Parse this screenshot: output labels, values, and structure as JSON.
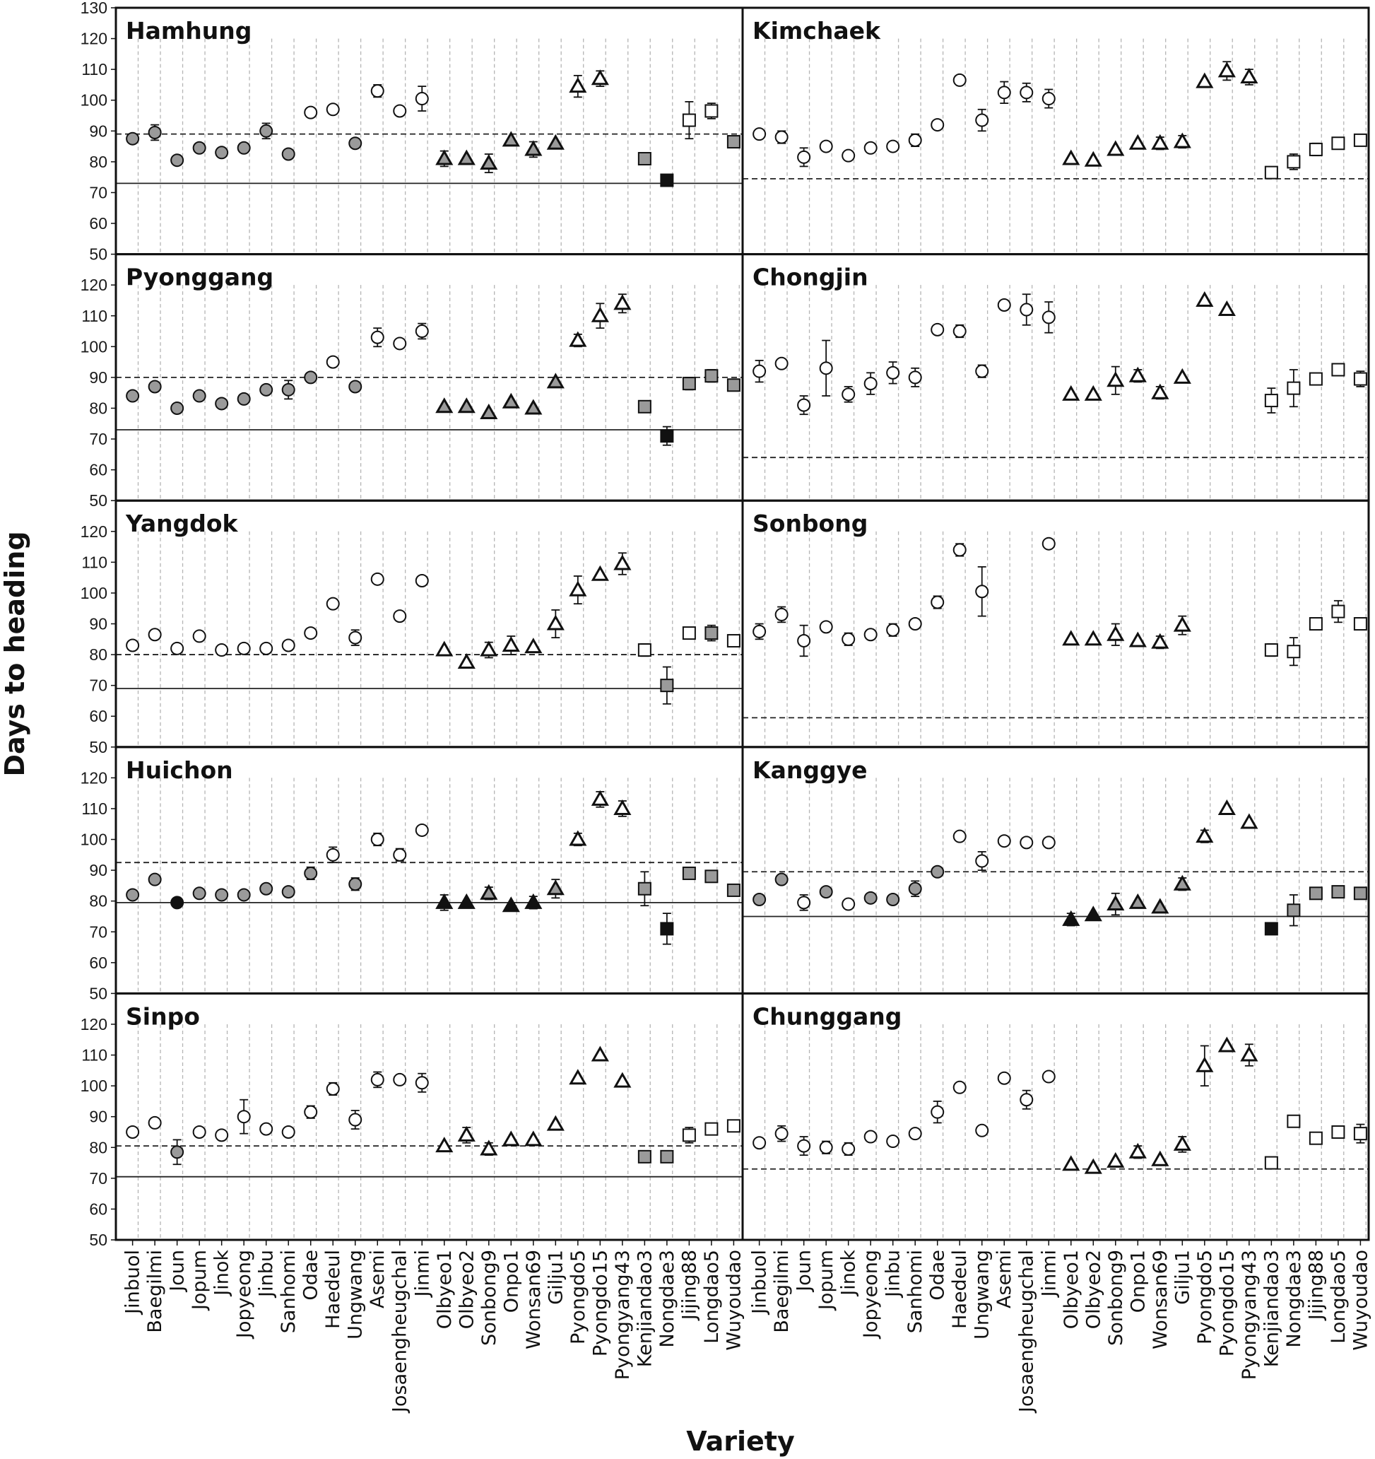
{
  "chart_data": {
    "type": "scatter",
    "ylabel": "Days to heading",
    "xlabel": "Variety",
    "ylim": [
      50,
      130
    ],
    "yticks": [
      50,
      60,
      70,
      80,
      90,
      100,
      110,
      120,
      130
    ],
    "grid": "vertical dashed",
    "categories": [
      "Jinbuol",
      "Baegilmi",
      "Joun",
      "Jopum",
      "Jinok",
      "Jopyeong",
      "Jinbu",
      "Sanhomi",
      "Odae",
      "Haedeul",
      "Ungwang",
      "Asemi",
      "Josaengheugchal",
      "Jinmi",
      "Olbyeo1",
      "Olbyeo2",
      "Sonbong9",
      "Onpo1",
      "Wonsan69",
      "Gilju1",
      "Pyongdo5",
      "Pyongdo15",
      "Pyongyang43",
      "Kenjiandao3",
      "Nongdae3",
      "Jijing88",
      "Longdao5",
      "Wuyoudao"
    ],
    "marker_by_category": [
      "circle",
      "circle",
      "circle",
      "circle",
      "circle",
      "circle",
      "circle",
      "circle",
      "circle",
      "circle",
      "circle",
      "circle",
      "circle",
      "circle",
      "triangle",
      "triangle",
      "triangle",
      "triangle",
      "triangle",
      "triangle",
      "triangle",
      "triangle",
      "triangle",
      "square",
      "square",
      "square",
      "square",
      "square"
    ],
    "fill_colors": {
      "open": "#ffffff",
      "grey": "#9a9a9a",
      "black": "#111111"
    },
    "panels": [
      {
        "title": "Hamhung",
        "values": [
          87.5,
          89.5,
          80.5,
          84.5,
          83,
          84.5,
          90,
          82.5,
          96,
          97,
          86,
          103,
          96.5,
          100.5,
          81,
          81,
          79.5,
          87,
          84,
          86,
          104.5,
          107,
          null,
          81,
          74,
          93.5,
          96.5,
          86.5
        ],
        "errors": [
          0,
          2.5,
          0,
          0,
          0,
          0,
          2.5,
          0,
          0,
          0,
          0,
          2,
          0,
          4,
          2.5,
          0,
          3,
          0,
          2.5,
          0,
          3.5,
          2.5,
          0,
          0,
          0,
          6,
          2.5,
          0
        ],
        "fills": [
          "grey",
          "grey",
          "grey",
          "grey",
          "grey",
          "grey",
          "grey",
          "grey",
          "open",
          "open",
          "grey",
          "open",
          "open",
          "open",
          "grey",
          "grey",
          "grey",
          "grey",
          "grey",
          "grey",
          "open",
          "open",
          "open",
          "grey",
          "black",
          "open",
          "open",
          "grey"
        ],
        "dashed_line": 89,
        "solid_line": 73
      },
      {
        "title": "Kimchaek",
        "values": [
          89,
          88,
          81.5,
          85,
          82,
          84.5,
          85,
          87,
          92,
          106.5,
          93.5,
          102.5,
          102.5,
          100.5,
          81,
          80.5,
          84,
          86,
          86,
          86.5,
          106,
          109.5,
          107.5,
          76.5,
          80,
          84,
          86,
          87
        ],
        "errors": [
          0,
          2,
          3,
          0,
          0,
          0,
          0,
          2,
          0,
          0,
          3.5,
          3.5,
          3,
          3,
          0,
          0,
          0,
          0,
          2,
          2,
          0,
          3,
          2.5,
          0,
          2.5,
          2,
          0,
          0
        ],
        "fills": [
          "open",
          "open",
          "open",
          "open",
          "open",
          "open",
          "open",
          "open",
          "open",
          "open",
          "open",
          "open",
          "open",
          "open",
          "open",
          "open",
          "open",
          "open",
          "open",
          "open",
          "open",
          "open",
          "open",
          "open",
          "open",
          "open",
          "open",
          "open"
        ],
        "dashed_line": 74.5,
        "solid_line": null
      },
      {
        "title": "Pyonggang",
        "values": [
          84,
          87,
          80,
          84,
          81.5,
          83,
          86,
          86,
          90,
          95,
          87,
          103,
          101,
          105,
          80.5,
          80.5,
          78.5,
          82,
          80,
          88.5,
          102,
          110,
          114,
          80.5,
          71,
          88,
          90.5,
          87.5
        ],
        "errors": [
          0,
          0,
          0,
          0,
          0,
          0,
          0,
          3,
          0,
          0,
          0,
          3,
          0,
          2.5,
          0,
          0,
          0,
          0,
          0,
          0,
          2,
          4,
          3,
          0,
          3,
          2,
          2,
          0
        ],
        "fills": [
          "grey",
          "grey",
          "grey",
          "grey",
          "grey",
          "grey",
          "grey",
          "grey",
          "grey",
          "open",
          "grey",
          "open",
          "open",
          "open",
          "grey",
          "grey",
          "grey",
          "grey",
          "grey",
          "grey",
          "open",
          "open",
          "open",
          "grey",
          "black",
          "grey",
          "grey",
          "grey"
        ],
        "dashed_line": 90,
        "solid_line": 73
      },
      {
        "title": "Chongjin",
        "values": [
          92,
          94.5,
          81,
          93,
          84.5,
          88,
          91.5,
          90,
          105.5,
          105,
          92,
          113.5,
          112,
          109.5,
          84.5,
          84.5,
          89,
          90.5,
          85,
          90,
          115,
          112,
          null,
          82.5,
          86.5,
          89.5,
          92.5,
          89.5
        ],
        "errors": [
          3.5,
          0,
          3,
          9,
          2.5,
          3.5,
          3.5,
          3,
          0,
          2,
          2,
          0,
          5,
          5,
          0,
          0,
          4.5,
          2,
          2,
          0,
          0,
          0,
          0,
          4,
          6,
          0,
          0,
          2.5
        ],
        "fills": [
          "open",
          "open",
          "open",
          "open",
          "open",
          "open",
          "open",
          "open",
          "open",
          "open",
          "open",
          "open",
          "open",
          "open",
          "open",
          "open",
          "open",
          "open",
          "open",
          "open",
          "open",
          "open",
          "open",
          "open",
          "open",
          "open",
          "open",
          "open"
        ],
        "dashed_line": 64,
        "solid_line": null
      },
      {
        "title": "Yangdok",
        "values": [
          83,
          86.5,
          82,
          86,
          81.5,
          82,
          82,
          83,
          87,
          96.5,
          85.5,
          104.5,
          92.5,
          104,
          81.5,
          77.5,
          81.5,
          83,
          82.5,
          90,
          101,
          106,
          109.5,
          81.5,
          70,
          87,
          87,
          84.5
        ],
        "errors": [
          0,
          0,
          0,
          0,
          0,
          0,
          0,
          0,
          0,
          0,
          2.5,
          0,
          0,
          0,
          0,
          0,
          2.5,
          3,
          0,
          4.5,
          4.5,
          0,
          3.5,
          2,
          6,
          0,
          2.5,
          0
        ],
        "fills": [
          "open",
          "open",
          "open",
          "open",
          "open",
          "open",
          "open",
          "open",
          "open",
          "open",
          "open",
          "open",
          "open",
          "open",
          "open",
          "open",
          "open",
          "open",
          "open",
          "open",
          "open",
          "open",
          "open",
          "open",
          "grey",
          "open",
          "grey",
          "open"
        ],
        "dashed_line": 80,
        "solid_line": 69
      },
      {
        "title": "Sonbong",
        "values": [
          87.5,
          93,
          84.5,
          89,
          85,
          86.5,
          88,
          90,
          97,
          114,
          100.5,
          null,
          null,
          116,
          85,
          85,
          86.5,
          84.5,
          84,
          89.5,
          null,
          null,
          null,
          81.5,
          81,
          90,
          94,
          90
        ],
        "errors": [
          2.5,
          2.5,
          5,
          0,
          2,
          0,
          2,
          0,
          2,
          2,
          8,
          0,
          0,
          0,
          0,
          0,
          3.5,
          0,
          2,
          3,
          0,
          0,
          0,
          2,
          4.5,
          0,
          3.5,
          0
        ],
        "fills": [
          "open",
          "open",
          "open",
          "open",
          "open",
          "open",
          "open",
          "open",
          "open",
          "open",
          "open",
          "open",
          "open",
          "open",
          "open",
          "open",
          "open",
          "open",
          "open",
          "open",
          "open",
          "open",
          "open",
          "open",
          "open",
          "open",
          "open",
          "open"
        ],
        "dashed_line": 59.5,
        "solid_line": null
      },
      {
        "title": "Huichon",
        "values": [
          82,
          87,
          79.5,
          82.5,
          82,
          82,
          84,
          83,
          89,
          95,
          85.5,
          100,
          95,
          103,
          79.5,
          79.5,
          82.5,
          78.5,
          79.5,
          84,
          100,
          113,
          110,
          84,
          71,
          89,
          88,
          83.5
        ],
        "errors": [
          0,
          0,
          0,
          0,
          0,
          0,
          0,
          0,
          2,
          2.5,
          2,
          2,
          2,
          0,
          2.5,
          0,
          2,
          0,
          2,
          3,
          2,
          2.5,
          2.5,
          5.5,
          5,
          0,
          0,
          0
        ],
        "fills": [
          "grey",
          "grey",
          "black",
          "grey",
          "grey",
          "grey",
          "grey",
          "grey",
          "grey",
          "open",
          "grey",
          "open",
          "open",
          "open",
          "black",
          "black",
          "grey",
          "black",
          "black",
          "grey",
          "open",
          "open",
          "open",
          "grey",
          "black",
          "grey",
          "grey",
          "grey"
        ],
        "dashed_line": 92.5,
        "solid_line": 79.5
      },
      {
        "title": "Kanggye",
        "values": [
          80.5,
          87,
          79.5,
          83,
          79,
          81,
          80.5,
          84,
          89.5,
          101,
          93,
          99.5,
          99,
          99,
          74,
          75.5,
          79,
          79.5,
          78,
          85.5,
          101,
          110,
          105.5,
          71,
          77,
          82.5,
          83,
          82.5
        ],
        "errors": [
          0,
          0,
          2.5,
          0,
          0,
          0,
          0,
          2.5,
          0,
          0,
          3,
          0,
          0,
          0,
          2,
          0,
          3.5,
          0,
          0,
          2,
          2,
          0,
          0,
          0,
          5,
          0,
          0,
          0
        ],
        "fills": [
          "grey",
          "grey",
          "open",
          "grey",
          "open",
          "grey",
          "grey",
          "grey",
          "grey",
          "open",
          "open",
          "open",
          "open",
          "open",
          "black",
          "black",
          "grey",
          "grey",
          "grey",
          "grey",
          "open",
          "open",
          "open",
          "black",
          "grey",
          "grey",
          "grey",
          "grey"
        ],
        "dashed_line": 89.5,
        "solid_line": 75
      },
      {
        "title": "Sinpo",
        "values": [
          85,
          88,
          78.5,
          85,
          84,
          90,
          86,
          85,
          91.5,
          99,
          89,
          102,
          102,
          101,
          80.5,
          84,
          79.5,
          82.5,
          82.5,
          87.5,
          102.5,
          110,
          101.5,
          77,
          77,
          84,
          86,
          87
        ],
        "errors": [
          0,
          0,
          4,
          0,
          0,
          5.5,
          0,
          0,
          2,
          2,
          3,
          2.5,
          0,
          3,
          0,
          2.5,
          2,
          0,
          0,
          0,
          0,
          0,
          0,
          0,
          0,
          2.5,
          0,
          0
        ],
        "fills": [
          "open",
          "open",
          "grey",
          "open",
          "open",
          "open",
          "open",
          "open",
          "open",
          "open",
          "open",
          "open",
          "open",
          "open",
          "open",
          "open",
          "open",
          "open",
          "open",
          "open",
          "open",
          "open",
          "open",
          "grey",
          "grey",
          "open",
          "open",
          "open"
        ],
        "dashed_line": 80.5,
        "solid_line": 70.5
      },
      {
        "title": "Chunggang",
        "values": [
          81.5,
          84.5,
          80.5,
          80,
          79.5,
          83.5,
          82,
          84.5,
          91.5,
          99.5,
          85.5,
          102.5,
          95.5,
          103,
          74.5,
          73.5,
          75.5,
          78.5,
          76,
          81,
          106.5,
          113,
          110,
          75,
          88.5,
          83,
          85,
          84.5
        ],
        "errors": [
          0,
          2.5,
          3,
          2,
          2,
          0,
          0,
          0,
          3.5,
          0,
          0,
          0,
          3,
          0,
          0,
          0,
          0,
          2,
          0,
          2.5,
          6.5,
          0,
          3.5,
          0,
          0,
          0,
          0,
          3
        ],
        "fills": [
          "open",
          "open",
          "open",
          "open",
          "open",
          "open",
          "open",
          "open",
          "open",
          "open",
          "open",
          "open",
          "open",
          "open",
          "open",
          "open",
          "open",
          "open",
          "open",
          "open",
          "open",
          "open",
          "open",
          "open",
          "open",
          "open",
          "open",
          "open"
        ],
        "dashed_line": 73,
        "solid_line": null
      }
    ]
  }
}
